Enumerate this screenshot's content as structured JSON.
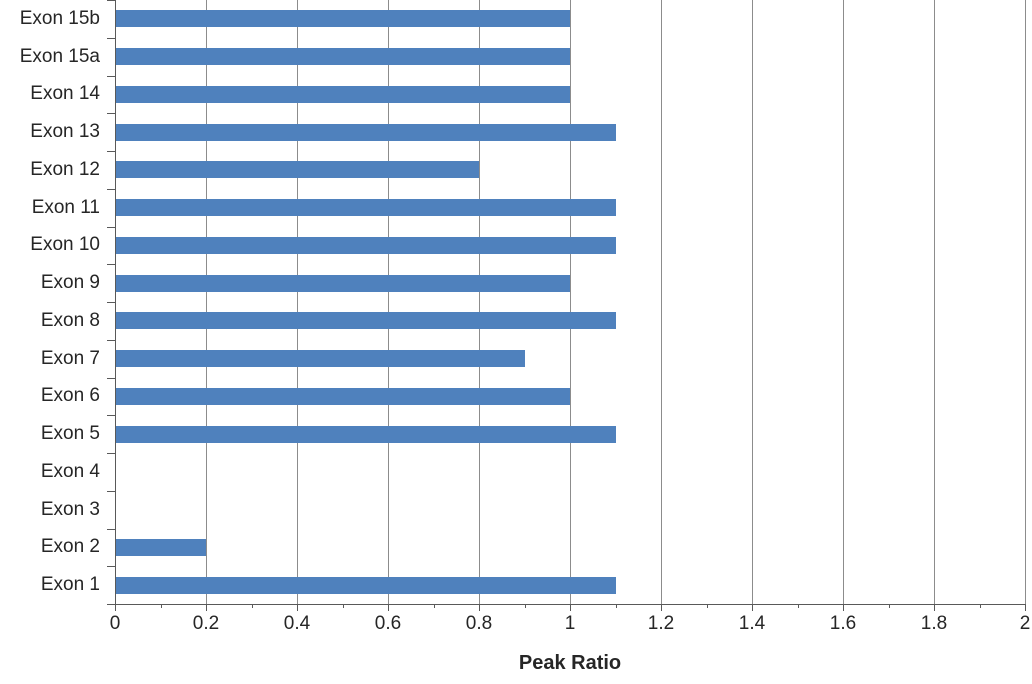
{
  "chart_data": {
    "type": "bar",
    "orientation": "horizontal",
    "title": "",
    "xlabel": "Peak Ratio",
    "ylabel": "",
    "xlim": [
      0,
      2
    ],
    "grid": "vertical-major",
    "legend": "none",
    "categories": [
      "Exon 1",
      "Exon 2",
      "Exon 3",
      "Exon 4",
      "Exon 5",
      "Exon 6",
      "Exon 7",
      "Exon 8",
      "Exon 9",
      "Exon 10",
      "Exon 11",
      "Exon 12",
      "Exon 13",
      "Exon 14",
      "Exon 15a",
      "Exon 15b"
    ],
    "categories_order": "bottom-to-top",
    "values": [
      1.1,
      0.2,
      0,
      0,
      1.1,
      1.0,
      0.9,
      1.1,
      1.0,
      1.1,
      1.1,
      0.8,
      1.1,
      1.0,
      1.0,
      1.0
    ],
    "x_major_ticks": {
      "values": [
        0,
        0.2,
        0.4,
        0.6,
        0.8,
        1,
        1.2,
        1.4,
        1.6,
        1.8,
        2
      ],
      "labels": [
        "0",
        "0.2",
        "0.4",
        "0.6",
        "0.8",
        "1",
        "1.2",
        "1.4",
        "1.6",
        "1.8",
        "2"
      ]
    },
    "x_minor_tick_step": 0.1,
    "colors": {
      "bar": "#4F81BD",
      "gridline": "#8C8C8C",
      "axis": "#595959",
      "text": "#262626",
      "background": "#FFFFFF"
    }
  }
}
